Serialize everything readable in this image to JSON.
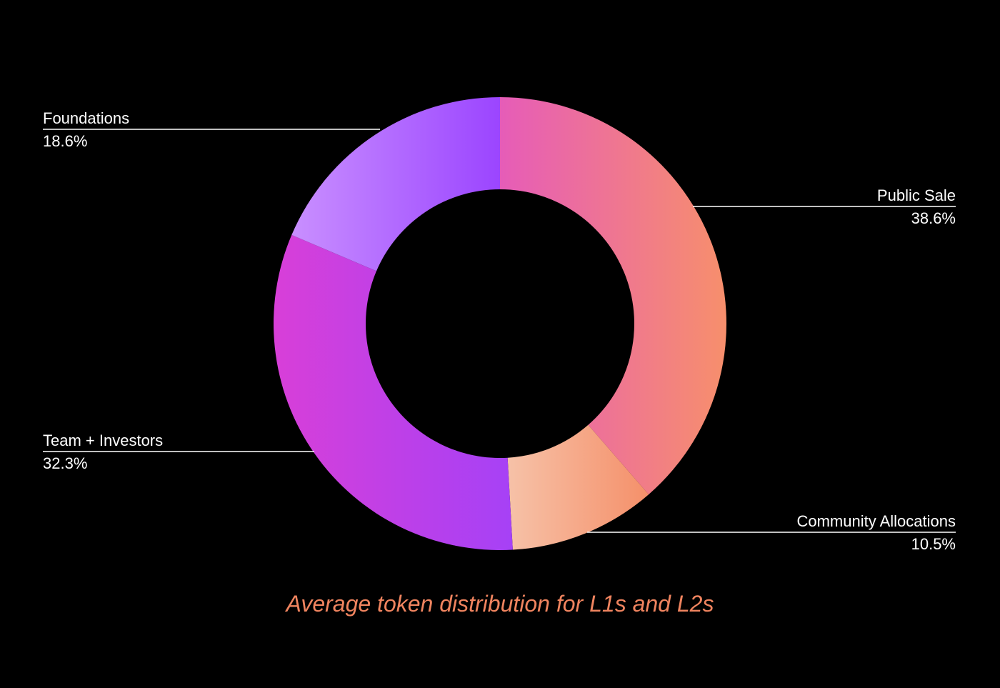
{
  "chart_data": {
    "type": "donut",
    "title": "Average token distribution for L1s and L2s",
    "categories": [
      "Public Sale",
      "Community Allocations",
      "Team + Investors",
      "Foundations"
    ],
    "values": [
      38.6,
      10.5,
      32.3,
      18.6
    ],
    "value_labels": [
      "38.6%",
      "10.5%",
      "32.3%",
      "18.6%"
    ],
    "colors": [
      [
        "#e65cb8",
        "#f78f6c"
      ],
      [
        "#f6c2a8",
        "#f5906a"
      ],
      [
        "#d83fd8",
        "#a641f6"
      ],
      [
        "#c98fff",
        "#9b45ff"
      ]
    ],
    "title_color": "#f0845f"
  }
}
